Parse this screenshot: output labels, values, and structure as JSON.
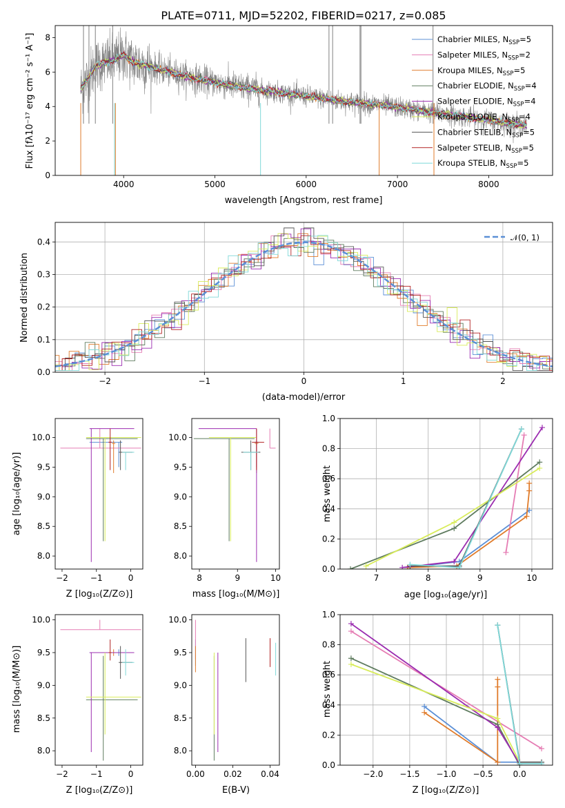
{
  "colors": {
    "chabrier_miles": "#5b8fd6",
    "salpeter_miles": "#e57cb3",
    "kroupa_miles": "#e07b2a",
    "chabrier_elodie": "#5e7b5e",
    "salpeter_elodie": "#9b2cb0",
    "kroupa_elodie": "#d8ec5a",
    "chabrier_stelib": "#555555",
    "salpeter_stelib": "#b22222",
    "kroupa_stelib": "#7fd8d8",
    "data": "#808080",
    "grid": "#b0b0b0"
  },
  "chart_data": [
    {
      "type": "line",
      "title": "PLATE=0711, MJD=52202, FIBERID=0217, z=0.085",
      "xlabel": "wavelength [Angstrom, rest frame]",
      "ylabel": "Flux [fλ10⁻¹⁷ erg cm⁻² s⁻¹ A⁻¹]",
      "xlim": [
        3250,
        8700
      ],
      "ylim": [
        0,
        8.7
      ],
      "xticks": [
        "4000",
        "5000",
        "6000",
        "7000",
        "8000"
      ],
      "yticks": [
        "0",
        "2",
        "4",
        "6",
        "8"
      ],
      "legend_position": "upper-right",
      "legend": [
        {
          "label": "Chabrier MILES, N",
          "sub": "SSP",
          "tail": "=5",
          "key": "chabrier_miles"
        },
        {
          "label": "Salpeter MILES, N",
          "sub": "SSP",
          "tail": "=2",
          "key": "salpeter_miles"
        },
        {
          "label": "Kroupa MILES, N",
          "sub": "SSP",
          "tail": "=5",
          "key": "kroupa_miles"
        },
        {
          "label": "Chabrier ELODIE, N",
          "sub": "SSP",
          "tail": "=4",
          "key": "chabrier_elodie"
        },
        {
          "label": "Salpeter ELODIE, N",
          "sub": "SSP",
          "tail": "=4",
          "key": "salpeter_elodie"
        },
        {
          "label": "Kroupa ELODIE, N",
          "sub": "SSP",
          "tail": "=4",
          "key": "kroupa_elodie"
        },
        {
          "label": "Chabrier STELIB, N",
          "sub": "SSP",
          "tail": "=5",
          "key": "chabrier_stelib"
        },
        {
          "label": "Salpeter STELIB, N",
          "sub": "SSP",
          "tail": "=5",
          "key": "salpeter_stelib"
        },
        {
          "label": "Kroupa STELIB, N",
          "sub": "SSP",
          "tail": "=5",
          "key": "kroupa_stelib"
        }
      ],
      "continuum": {
        "x": [
          3530,
          3700,
          3900,
          4000,
          4100,
          4300,
          4500,
          4800,
          5000,
          5300,
          5600,
          6000,
          6400,
          6800,
          7200,
          7600,
          8000,
          8400
        ],
        "y": [
          5.0,
          6.4,
          6.7,
          7.0,
          6.6,
          6.3,
          6.0,
          5.6,
          5.4,
          5.1,
          4.9,
          4.6,
          4.3,
          4.1,
          3.8,
          3.5,
          3.2,
          2.9
        ]
      }
    },
    {
      "type": "histogram",
      "xlabel": "(data-model)/error",
      "ylabel": "Normed distribution",
      "xlim": [
        -2.5,
        2.5
      ],
      "ylim": [
        0,
        0.46
      ],
      "xticks": [
        "−2",
        "−1",
        "0",
        "1",
        "2"
      ],
      "yticks": [
        "0.0",
        "0.1",
        "0.2",
        "0.3",
        "0.4"
      ],
      "grid": true,
      "legend_position": "upper-right",
      "legend": {
        "label": "𝒩(0, 1)"
      },
      "reference": "normal pdf, mean 0, sigma 1"
    },
    {
      "type": "scatter",
      "xlabel": "Z [log₁₀(Z/Z⊙)]",
      "ylabel": "age  [log₁₀(age/yr)]",
      "xlim": [
        -2.2,
        0.35
      ],
      "ylim": [
        7.78,
        10.32
      ],
      "xticks": [
        "−2",
        "−1",
        "0"
      ],
      "yticks": [
        "8.0",
        "8.5",
        "9.0",
        "9.5",
        "10.0"
      ]
    },
    {
      "type": "scatter",
      "xlabel": "mass [log₁₀(M/M⊙)]",
      "xlim": [
        7.8,
        10.1
      ],
      "ylim": [
        7.78,
        10.32
      ],
      "xticks": [
        "8",
        "9",
        "10"
      ],
      "yticks": [
        "8.0",
        "8.5",
        "9.0",
        "9.5",
        "10.0"
      ]
    },
    {
      "type": "line",
      "xlabel": "age  [log₁₀(age/yr)]",
      "ylabel": "mass weight",
      "xlim": [
        6.3,
        10.4
      ],
      "ylim": [
        0,
        1.0
      ],
      "xticks": [
        "7",
        "8",
        "9",
        "10"
      ],
      "yticks": [
        "0.0",
        "0.2",
        "0.4",
        "0.6",
        "0.8",
        "1.0"
      ],
      "grid": true,
      "series": [
        {
          "key": "chabrier_miles",
          "x": [
            7.6,
            8.6,
            9.95
          ],
          "y": [
            0.01,
            0.05,
            0.39
          ]
        },
        {
          "key": "salpeter_miles",
          "x": [
            9.5,
            9.85
          ],
          "y": [
            0.11,
            0.89
          ]
        },
        {
          "key": "kroupa_miles",
          "x": [
            7.6,
            8.55,
            9.9,
            9.95,
            9.95
          ],
          "y": [
            0.01,
            0.02,
            0.35,
            0.52,
            0.57
          ]
        },
        {
          "key": "chabrier_elodie",
          "x": [
            6.5,
            8.5,
            10.15
          ],
          "y": [
            0.0,
            0.27,
            0.71
          ]
        },
        {
          "key": "salpeter_elodie",
          "x": [
            7.5,
            8.5,
            10.2
          ],
          "y": [
            0.01,
            0.05,
            0.94
          ]
        },
        {
          "key": "kroupa_elodie",
          "x": [
            6.8,
            8.5,
            10.15
          ],
          "y": [
            0.02,
            0.31,
            0.67
          ]
        },
        {
          "key": "chabrier_stelib",
          "x": [
            7.65,
            8.6,
            9.8
          ],
          "y": [
            0.02,
            0.02,
            0.93
          ]
        },
        {
          "key": "kroupa_stelib",
          "x": [
            7.65,
            8.6,
            9.8
          ],
          "y": [
            0.03,
            0.01,
            0.93
          ]
        }
      ]
    },
    {
      "type": "scatter",
      "xlabel": "Z [log₁₀(Z/Z⊙)]",
      "ylabel": "mass [log₁₀(M/M⊙)]",
      "xlim": [
        -2.2,
        0.35
      ],
      "ylim": [
        7.78,
        10.08
      ],
      "xticks": [
        "−2",
        "−1",
        "0"
      ],
      "yticks": [
        "8.0",
        "8.5",
        "9.0",
        "9.5",
        "10.0"
      ]
    },
    {
      "type": "scatter",
      "xlabel": "E(B-V)",
      "xlim": [
        -0.002,
        0.045
      ],
      "ylim": [
        7.78,
        10.08
      ],
      "xticks": [
        "0.00",
        "0.02",
        "0.04"
      ],
      "yticks": [
        "8.0",
        "8.5",
        "9.0",
        "9.5",
        "10.0"
      ]
    },
    {
      "type": "line",
      "xlabel": "Z [log₁₀(Z/Z⊙)]",
      "ylabel": "mass weight",
      "xlim": [
        -2.45,
        0.45
      ],
      "ylim": [
        0,
        1.0
      ],
      "xticks": [
        "−2.0",
        "−1.5",
        "−1.0",
        "−0.5",
        "0.0"
      ],
      "yticks": [
        "0.0",
        "0.2",
        "0.4",
        "0.6",
        "0.8",
        "1.0"
      ],
      "grid": true,
      "series": [
        {
          "key": "chabrier_miles",
          "x": [
            -1.3,
            -0.3,
            0.0
          ],
          "y": [
            0.39,
            0.02,
            0.02
          ]
        },
        {
          "key": "salpeter_miles",
          "x": [
            -2.3,
            0.3
          ],
          "y": [
            0.89,
            0.11
          ]
        },
        {
          "key": "kroupa_miles",
          "x": [
            -1.3,
            -0.3,
            -0.3,
            -0.3
          ],
          "y": [
            0.35,
            0.02,
            0.52,
            0.57
          ]
        },
        {
          "key": "chabrier_elodie",
          "x": [
            -2.3,
            -0.3,
            0.0
          ],
          "y": [
            0.71,
            0.27,
            0.0
          ]
        },
        {
          "key": "salpeter_elodie",
          "x": [
            -2.3,
            -0.3,
            0.0
          ],
          "y": [
            0.94,
            0.25,
            0.01
          ]
        },
        {
          "key": "kroupa_elodie",
          "x": [
            -2.3,
            -0.3,
            0.0
          ],
          "y": [
            0.67,
            0.31,
            0.02
          ]
        },
        {
          "key": "chabrier_stelib",
          "x": [
            -0.3,
            0.0,
            0.3
          ],
          "y": [
            0.93,
            0.02,
            0.02
          ]
        },
        {
          "key": "kroupa_stelib",
          "x": [
            -0.3,
            0.0,
            0.3
          ],
          "y": [
            0.93,
            0.01,
            0.01
          ]
        }
      ]
    }
  ],
  "bestfit": [
    {
      "key": "chabrier_miles",
      "Z": -0.35,
      "zlo": -1.2,
      "zhi": -0.25,
      "age": 9.92,
      "alo": 9.5,
      "ahi": 9.92,
      "mass": 9.5,
      "mlo": 9.45,
      "mhi": 9.55,
      "ebv": 0.0,
      "elo": 9.3,
      "ehi": 9.7
    },
    {
      "key": "salpeter_miles",
      "Z": -0.9,
      "zlo": -2.05,
      "zhi": 0.3,
      "age": 9.82,
      "alo": 9.82,
      "ahi": 10.15,
      "mass": 9.85,
      "mlo": 9.85,
      "mhi": 10.0,
      "ebv": 0.0,
      "elo": 9.4,
      "ehi": 10.0
    },
    {
      "key": "kroupa_miles",
      "Z": -0.5,
      "zlo": -0.55,
      "zhi": -0.45,
      "age": 9.9,
      "alo": 9.4,
      "ahi": 9.95,
      "mass": 9.5,
      "mlo": 9.45,
      "mhi": 9.55,
      "ebv": 0.0,
      "elo": 9.2,
      "ehi": 9.6
    },
    {
      "key": "chabrier_elodie",
      "Z": -0.8,
      "zlo": -1.3,
      "zhi": 0.2,
      "age": 9.98,
      "alo": 8.25,
      "ahi": 9.98,
      "mass": 8.78,
      "mlo": 7.85,
      "mhi": 9.45,
      "ebv": 0.01,
      "elo": 7.85,
      "ehi": 9.45
    },
    {
      "key": "salpeter_elodie",
      "Z": -1.15,
      "zlo": -1.2,
      "zhi": 0.1,
      "age": 10.15,
      "alo": 7.9,
      "ahi": 10.15,
      "mass": 9.5,
      "mlo": 7.98,
      "mhi": 9.5,
      "ebv": 0.012,
      "elo": 7.98,
      "ehi": 9.5
    },
    {
      "key": "kroupa_elodie",
      "Z": -0.75,
      "zlo": -1.3,
      "zhi": 0.3,
      "age": 10.0,
      "alo": 8.25,
      "ahi": 10.0,
      "mass": 8.82,
      "mlo": 8.25,
      "mhi": 9.5,
      "ebv": 0.01,
      "elo": 8.25,
      "ehi": 9.5
    },
    {
      "key": "chabrier_stelib",
      "Z": -0.3,
      "zlo": -0.35,
      "zhi": 0.05,
      "age": 9.75,
      "alo": 9.45,
      "ahi": 9.95,
      "mass": 9.35,
      "mlo": 9.1,
      "mhi": 9.6,
      "ebv": 0.027,
      "elo": 9.05,
      "ehi": 9.72
    },
    {
      "key": "salpeter_stelib",
      "Z": -0.6,
      "zlo": -0.65,
      "zhi": -0.55,
      "age": 9.92,
      "alo": 9.45,
      "ahi": 10.15,
      "mass": 9.5,
      "mlo": 9.38,
      "mhi": 9.7,
      "ebv": 0.04,
      "elo": 9.28,
      "ehi": 9.72
    },
    {
      "key": "kroupa_stelib",
      "Z": -0.15,
      "zlo": -0.25,
      "zhi": 0.1,
      "age": 9.75,
      "alo": 9.45,
      "ahi": 9.75,
      "mass": 9.35,
      "mlo": 9.15,
      "mhi": 9.55,
      "ebv": 0.043,
      "elo": 9.15,
      "ehi": 9.65
    }
  ]
}
